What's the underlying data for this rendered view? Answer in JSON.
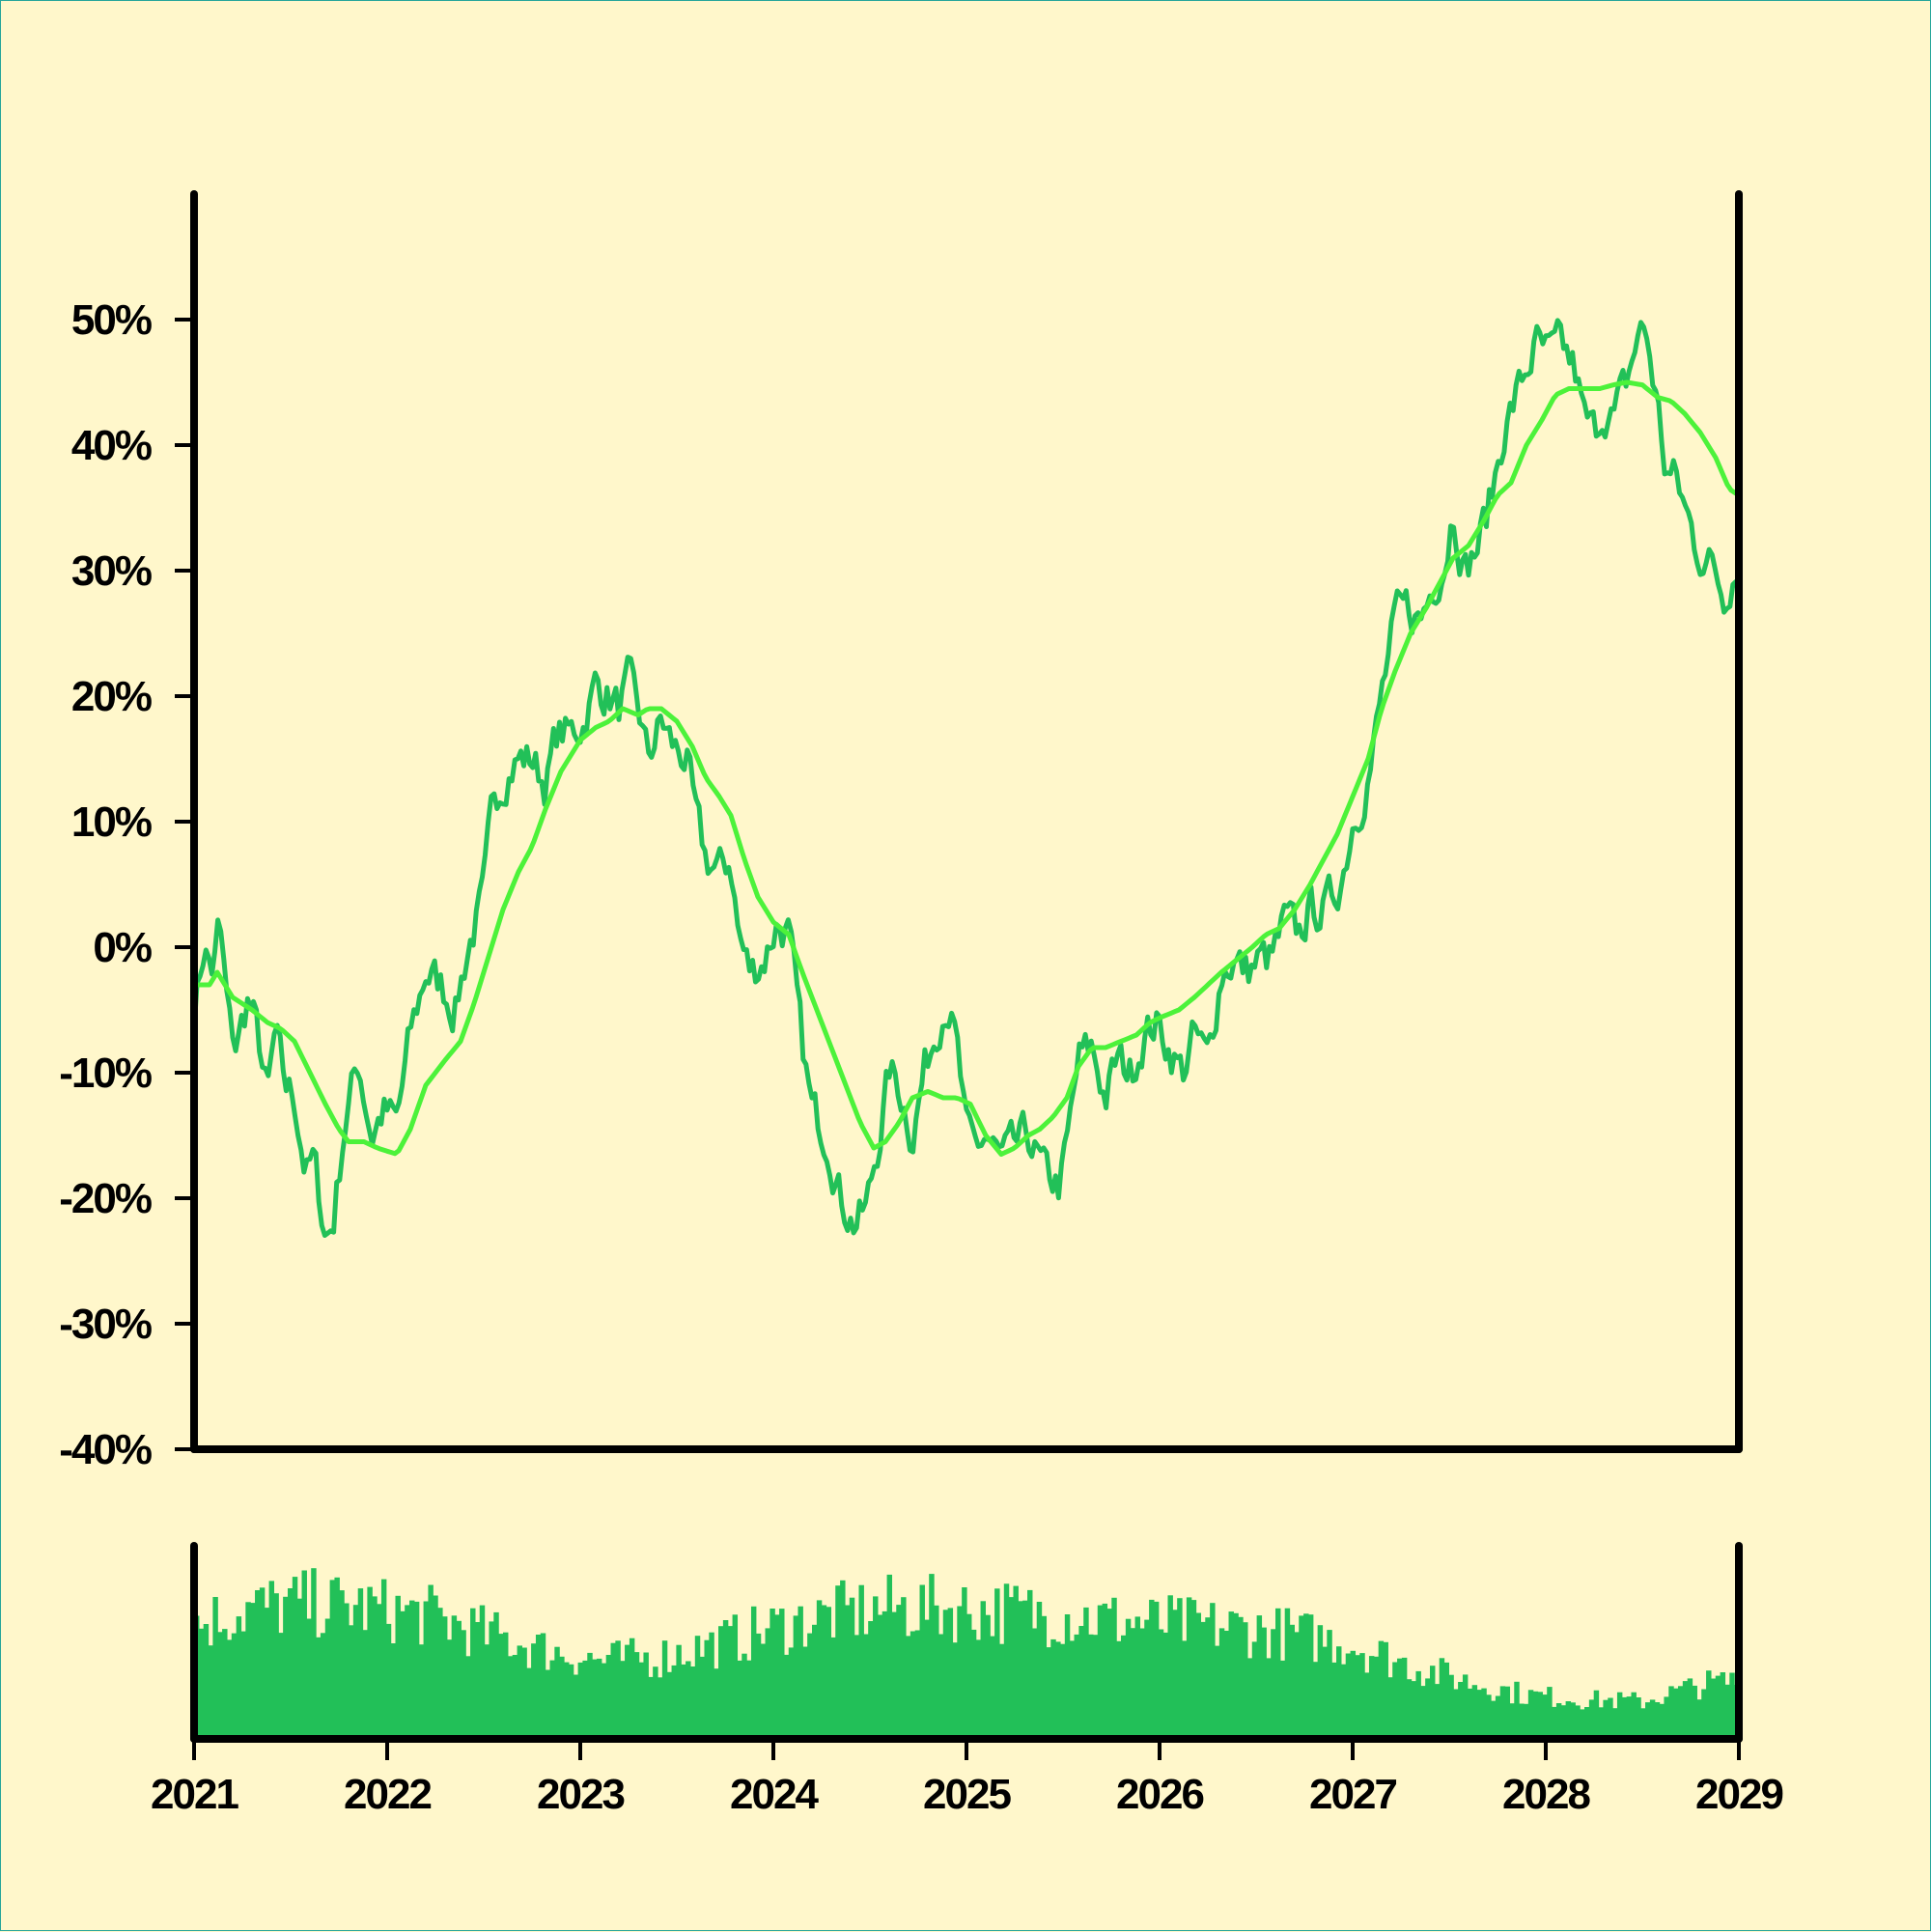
{
  "colors": {
    "background": "#fff7cb",
    "price_line": "#22c058",
    "moving_average": "#4cf23a",
    "volume_bars": "#22c058",
    "axes": "#000000"
  },
  "chart_data": [
    {
      "type": "line",
      "x_ticks": [
        "2021",
        "2022",
        "2023",
        "2024",
        "2025",
        "2026",
        "2027",
        "2028",
        "2029"
      ],
      "y_ticks": [
        "-40%",
        "-30%",
        "-20%",
        "-10%",
        "0%",
        "10%",
        "20%",
        "30%",
        "40%",
        "50%"
      ],
      "xlim": [
        2021,
        2029
      ],
      "ylim": [
        -40,
        60
      ],
      "grid": false,
      "series": [
        {
          "role": "price",
          "anchors": [
            [
              2021.0,
              -5
            ],
            [
              2021.05,
              0
            ],
            [
              2021.1,
              -2
            ],
            [
              2021.13,
              2
            ],
            [
              2021.18,
              -6
            ],
            [
              2021.22,
              -8
            ],
            [
              2021.28,
              -4
            ],
            [
              2021.33,
              -7
            ],
            [
              2021.38,
              -12
            ],
            [
              2021.42,
              -7
            ],
            [
              2021.47,
              -11
            ],
            [
              2021.52,
              -12
            ],
            [
              2021.58,
              -18
            ],
            [
              2021.62,
              -17
            ],
            [
              2021.68,
              -23
            ],
            [
              2021.72,
              -22
            ],
            [
              2021.78,
              -14
            ],
            [
              2021.85,
              -9
            ],
            [
              2021.92,
              -15
            ],
            [
              2021.98,
              -13
            ],
            [
              2022.05,
              -14
            ],
            [
              2022.12,
              -7
            ],
            [
              2022.2,
              -2
            ],
            [
              2022.28,
              -3
            ],
            [
              2022.35,
              -5
            ],
            [
              2022.42,
              0
            ],
            [
              2022.5,
              4
            ],
            [
              2022.55,
              12
            ],
            [
              2022.62,
              14
            ],
            [
              2022.68,
              15
            ],
            [
              2022.75,
              15
            ],
            [
              2022.82,
              13
            ],
            [
              2022.88,
              17
            ],
            [
              2022.95,
              17
            ],
            [
              2023.02,
              18
            ],
            [
              2023.08,
              21
            ],
            [
              2023.15,
              20
            ],
            [
              2023.2,
              19
            ],
            [
              2023.25,
              21
            ],
            [
              2023.3,
              19
            ],
            [
              2023.35,
              15
            ],
            [
              2023.42,
              18
            ],
            [
              2023.48,
              16
            ],
            [
              2023.55,
              15
            ],
            [
              2023.6,
              10
            ],
            [
              2023.65,
              7
            ],
            [
              2023.72,
              6
            ],
            [
              2023.78,
              7
            ],
            [
              2023.82,
              1
            ],
            [
              2023.88,
              -2
            ],
            [
              2023.95,
              -1
            ],
            [
              2024.02,
              2
            ],
            [
              2024.08,
              1
            ],
            [
              2024.15,
              -8
            ],
            [
              2024.2,
              -13
            ],
            [
              2024.28,
              -15
            ],
            [
              2024.35,
              -20
            ],
            [
              2024.42,
              -22
            ],
            [
              2024.48,
              -21
            ],
            [
              2024.55,
              -15
            ],
            [
              2024.6,
              -10
            ],
            [
              2024.65,
              -11
            ],
            [
              2024.72,
              -15
            ],
            [
              2024.78,
              -10
            ],
            [
              2024.85,
              -6
            ],
            [
              2024.9,
              -4
            ],
            [
              2024.95,
              -8
            ],
            [
              2025.0,
              -15
            ],
            [
              2025.05,
              -16
            ],
            [
              2025.1,
              -15
            ],
            [
              2025.18,
              -17
            ],
            [
              2025.25,
              -16
            ],
            [
              2025.32,
              -15
            ],
            [
              2025.4,
              -18
            ],
            [
              2025.48,
              -19
            ],
            [
              2025.52,
              -16
            ],
            [
              2025.58,
              -9
            ],
            [
              2025.65,
              -8
            ],
            [
              2025.72,
              -12
            ],
            [
              2025.78,
              -9
            ],
            [
              2025.85,
              -10
            ],
            [
              2025.92,
              -7
            ],
            [
              2025.98,
              -6
            ],
            [
              2026.05,
              -8
            ],
            [
              2026.12,
              -10
            ],
            [
              2026.18,
              -7
            ],
            [
              2026.25,
              -9
            ],
            [
              2026.32,
              -2
            ],
            [
              2026.38,
              -1
            ],
            [
              2026.45,
              -2
            ],
            [
              2026.52,
              -1
            ],
            [
              2026.58,
              -1
            ],
            [
              2026.65,
              2
            ],
            [
              2026.72,
              1
            ],
            [
              2026.78,
              3
            ],
            [
              2026.85,
              3
            ],
            [
              2026.9,
              4
            ],
            [
              2026.95,
              6
            ],
            [
              2027.0,
              10
            ],
            [
              2027.05,
              12
            ],
            [
              2027.1,
              15
            ],
            [
              2027.15,
              20
            ],
            [
              2027.22,
              26
            ],
            [
              2027.28,
              27
            ],
            [
              2027.35,
              26
            ],
            [
              2027.42,
              29
            ],
            [
              2027.48,
              31
            ],
            [
              2027.52,
              35
            ],
            [
              2027.58,
              30
            ],
            [
              2027.65,
              32
            ],
            [
              2027.72,
              36
            ],
            [
              2027.78,
              41
            ],
            [
              2027.85,
              44
            ],
            [
              2027.9,
              46
            ],
            [
              2027.95,
              48
            ],
            [
              2028.02,
              47
            ],
            [
              2028.08,
              48
            ],
            [
              2028.15,
              46
            ],
            [
              2028.2,
              42
            ],
            [
              2028.25,
              41
            ],
            [
              2028.3,
              43
            ],
            [
              2028.35,
              42
            ],
            [
              2028.42,
              45
            ],
            [
              2028.48,
              49
            ],
            [
              2028.52,
              49
            ],
            [
              2028.58,
              43
            ],
            [
              2028.62,
              38
            ],
            [
              2028.68,
              37
            ],
            [
              2028.72,
              35
            ],
            [
              2028.78,
              32
            ],
            [
              2028.82,
              31
            ],
            [
              2028.88,
              30
            ],
            [
              2028.92,
              28
            ],
            [
              2028.97,
              30
            ],
            [
              2029.0,
              30
            ]
          ]
        },
        {
          "role": "moving-average",
          "anchors": [
            [
              2021.0,
              -3
            ],
            [
              2021.08,
              -3
            ],
            [
              2021.12,
              -2
            ],
            [
              2021.2,
              -4
            ],
            [
              2021.3,
              -5
            ],
            [
              2021.38,
              -6
            ],
            [
              2021.45,
              -6.5
            ],
            [
              2021.52,
              -7.5
            ],
            [
              2021.6,
              -10
            ],
            [
              2021.68,
              -12.5
            ],
            [
              2021.75,
              -14.5
            ],
            [
              2021.8,
              -15.5
            ],
            [
              2021.88,
              -15.5
            ],
            [
              2021.95,
              -16
            ],
            [
              2022.05,
              -16.5
            ],
            [
              2022.12,
              -14.5
            ],
            [
              2022.2,
              -11
            ],
            [
              2022.3,
              -9
            ],
            [
              2022.38,
              -7.5
            ],
            [
              2022.45,
              -4.5
            ],
            [
              2022.52,
              -1
            ],
            [
              2022.6,
              3
            ],
            [
              2022.68,
              6
            ],
            [
              2022.75,
              8
            ],
            [
              2022.82,
              11
            ],
            [
              2022.9,
              14
            ],
            [
              2023.0,
              16.5
            ],
            [
              2023.08,
              17.5
            ],
            [
              2023.15,
              18
            ],
            [
              2023.22,
              19
            ],
            [
              2023.3,
              18.5
            ],
            [
              2023.35,
              19
            ],
            [
              2023.42,
              19
            ],
            [
              2023.5,
              18
            ],
            [
              2023.58,
              16
            ],
            [
              2023.65,
              13.5
            ],
            [
              2023.72,
              12
            ],
            [
              2023.78,
              10.5
            ],
            [
              2023.85,
              7
            ],
            [
              2023.92,
              4
            ],
            [
              2024.0,
              2
            ],
            [
              2024.08,
              1
            ],
            [
              2024.15,
              -2
            ],
            [
              2024.25,
              -6
            ],
            [
              2024.35,
              -10
            ],
            [
              2024.45,
              -14
            ],
            [
              2024.52,
              -16
            ],
            [
              2024.58,
              -15.5
            ],
            [
              2024.65,
              -14
            ],
            [
              2024.72,
              -12
            ],
            [
              2024.8,
              -11.5
            ],
            [
              2024.88,
              -12
            ],
            [
              2024.95,
              -12
            ],
            [
              2025.02,
              -12.5
            ],
            [
              2025.1,
              -15
            ],
            [
              2025.18,
              -16.5
            ],
            [
              2025.25,
              -16
            ],
            [
              2025.32,
              -15
            ],
            [
              2025.38,
              -14.5
            ],
            [
              2025.45,
              -13.5
            ],
            [
              2025.52,
              -12
            ],
            [
              2025.58,
              -9.5
            ],
            [
              2025.65,
              -8
            ],
            [
              2025.72,
              -8
            ],
            [
              2025.8,
              -7.5
            ],
            [
              2025.88,
              -7
            ],
            [
              2025.95,
              -6
            ],
            [
              2026.02,
              -5.5
            ],
            [
              2026.1,
              -5
            ],
            [
              2026.18,
              -4
            ],
            [
              2026.25,
              -3
            ],
            [
              2026.32,
              -2
            ],
            [
              2026.4,
              -1
            ],
            [
              2026.48,
              0
            ],
            [
              2026.55,
              1
            ],
            [
              2026.62,
              1.5
            ],
            [
              2026.7,
              3
            ],
            [
              2026.78,
              5
            ],
            [
              2026.85,
              7
            ],
            [
              2026.92,
              9
            ],
            [
              2027.0,
              12
            ],
            [
              2027.08,
              15
            ],
            [
              2027.15,
              19
            ],
            [
              2027.22,
              22
            ],
            [
              2027.3,
              25
            ],
            [
              2027.38,
              27
            ],
            [
              2027.45,
              29
            ],
            [
              2027.52,
              31
            ],
            [
              2027.6,
              32
            ],
            [
              2027.68,
              34
            ],
            [
              2027.75,
              36
            ],
            [
              2027.82,
              37
            ],
            [
              2027.9,
              40
            ],
            [
              2027.98,
              42
            ],
            [
              2028.05,
              44
            ],
            [
              2028.12,
              44.5
            ],
            [
              2028.2,
              44.5
            ],
            [
              2028.28,
              44.5
            ],
            [
              2028.35,
              44.8
            ],
            [
              2028.42,
              45
            ],
            [
              2028.5,
              44.8
            ],
            [
              2028.58,
              43.8
            ],
            [
              2028.65,
              43.5
            ],
            [
              2028.72,
              42.5
            ],
            [
              2028.8,
              41
            ],
            [
              2028.88,
              39
            ],
            [
              2028.95,
              36.5
            ],
            [
              2029.0,
              36
            ]
          ]
        }
      ]
    },
    {
      "type": "bar",
      "role": "volume",
      "xlim": [
        2021,
        2029
      ],
      "ylim": [
        0,
        100
      ],
      "profile": [
        [
          2021.0,
          70
        ],
        [
          2021.3,
          80
        ],
        [
          2021.6,
          83
        ],
        [
          2021.9,
          80
        ],
        [
          2022.2,
          76
        ],
        [
          2022.5,
          65
        ],
        [
          2022.8,
          55
        ],
        [
          2023.1,
          48
        ],
        [
          2023.4,
          50
        ],
        [
          2023.7,
          58
        ],
        [
          2024.0,
          68
        ],
        [
          2024.3,
          76
        ],
        [
          2024.6,
          80
        ],
        [
          2024.9,
          80
        ],
        [
          2025.2,
          78
        ],
        [
          2025.5,
          76
        ],
        [
          2025.8,
          72
        ],
        [
          2026.1,
          70
        ],
        [
          2026.4,
          68
        ],
        [
          2026.7,
          64
        ],
        [
          2027.0,
          58
        ],
        [
          2027.3,
          45
        ],
        [
          2027.6,
          35
        ],
        [
          2027.9,
          27
        ],
        [
          2028.2,
          24
        ],
        [
          2028.5,
          23
        ],
        [
          2028.8,
          33
        ],
        [
          2029.0,
          36
        ]
      ]
    }
  ]
}
